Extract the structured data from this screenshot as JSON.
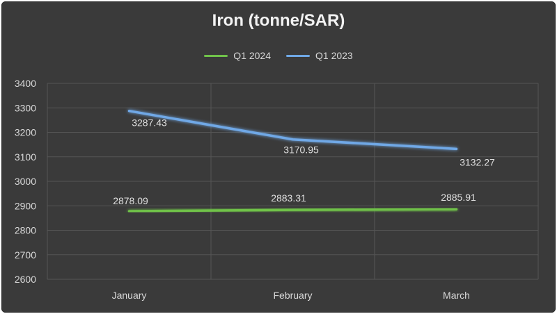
{
  "chart_data": {
    "type": "line",
    "title": "Iron (tonne/SAR)",
    "categories": [
      "January",
      "February",
      "March"
    ],
    "series": [
      {
        "name": "Q1 2024",
        "values": [
          2878.09,
          2883.31,
          2885.91
        ],
        "color": "#70c24a",
        "labels": [
          "2878.09",
          "2883.31",
          "2885.91"
        ]
      },
      {
        "name": "Q1 2023",
        "values": [
          3287.43,
          3170.95,
          3132.27
        ],
        "color": "#6fa8e6",
        "labels": [
          "3287.43",
          "3170.95",
          "3132.27"
        ]
      }
    ],
    "ylim": [
      2600,
      3400
    ],
    "yticks": [
      2600,
      2700,
      2800,
      2900,
      3000,
      3100,
      3200,
      3300,
      3400
    ],
    "grid": true,
    "legend_position": "top"
  }
}
